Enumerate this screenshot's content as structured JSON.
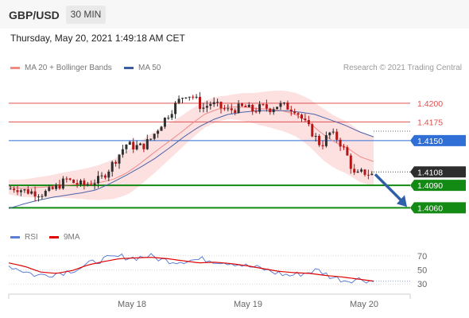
{
  "header": {
    "symbol": "GBP/USD",
    "timeframe": "30 MIN"
  },
  "timestamp": "Thursday, May 20, 2021 1:49:18 AM CET",
  "legend": {
    "ma20_label": "MA 20 + Bollinger Bands",
    "ma20_color": "#f28b82",
    "ma50_label": "MA 50",
    "ma50_color": "#3b5ba5",
    "copyright": "Research © 2021 Trading Central"
  },
  "rsi_legend": {
    "rsi_label": "RSI",
    "rsi_color": "#5b7fd6",
    "ma_label": "9MA",
    "ma_color": "#e00000"
  },
  "chart_data": {
    "type": "candlestick",
    "x_tick_labels": [
      "May 18",
      "May 19",
      "May 20"
    ],
    "price_range": [
      1.4038,
      1.4235
    ],
    "levels": [
      {
        "label": "1.4200",
        "value": 1.42,
        "kind": "resistance",
        "color": "#e05050"
      },
      {
        "label": "1.4175",
        "value": 1.4175,
        "kind": "resistance",
        "color": "#e05050"
      },
      {
        "label": "1.4150",
        "value": 1.415,
        "kind": "pivot",
        "color": "#2f6fd6"
      },
      {
        "label": "1.4108",
        "value": 1.4108,
        "kind": "last_price",
        "color": "#2d2d2d"
      },
      {
        "label": "1.4090",
        "value": 1.409,
        "kind": "target_1",
        "color": "#138a13"
      },
      {
        "label": "1.4060",
        "value": 1.406,
        "kind": "target_2",
        "color": "#138a13"
      }
    ],
    "forecast_arrow": {
      "from": 1.4108,
      "to": 1.406,
      "direction": "down",
      "color": "#2f5fa8"
    },
    "price_anchors": [
      1.4085,
      1.4087,
      1.4083,
      1.4081,
      1.4079,
      1.4082,
      1.4089,
      1.4098,
      1.4093,
      1.409,
      1.4094,
      1.4098,
      1.4112,
      1.4128,
      1.4145,
      1.4142,
      1.4142,
      1.4153,
      1.417,
      1.4185,
      1.42,
      1.4213,
      1.4209,
      1.4193,
      1.42,
      1.4195,
      1.419,
      1.4193,
      1.4195,
      1.419,
      1.4195,
      1.4193,
      1.4198,
      1.4195,
      1.4192,
      1.4175,
      1.416,
      1.4143,
      1.416,
      1.4152,
      1.4132,
      1.4102,
      1.4108,
      1.4104
    ],
    "ma20_anchors": [
      1.4088,
      1.4086,
      1.4087,
      1.4088,
      1.409,
      1.4091,
      1.4092,
      1.4094,
      1.4098,
      1.4106,
      1.4118,
      1.4132,
      1.4145,
      1.4158,
      1.4172,
      1.4185,
      1.4192,
      1.4195,
      1.4195,
      1.4193,
      1.4192,
      1.419,
      1.4185,
      1.4175,
      1.416,
      1.4148,
      1.414,
      1.4128,
      1.4122
    ],
    "ma50_anchors": [
      1.4059,
      1.4065,
      1.407,
      1.4074,
      1.4077,
      1.408,
      1.4084,
      1.4093,
      1.4103,
      1.4114,
      1.4126,
      1.414,
      1.4155,
      1.4168,
      1.4178,
      1.4185,
      1.4188,
      1.419,
      1.419,
      1.419,
      1.4188,
      1.4185,
      1.4178,
      1.4171,
      1.4162,
      1.4155
    ],
    "bb_width_anchors": [
      0.001,
      0.0013,
      0.0016,
      0.002,
      0.0025,
      0.003,
      0.0028,
      0.0022,
      0.0018,
      0.0016,
      0.002,
      0.0026,
      0.003,
      0.0035,
      0.0035,
      0.0033
    ],
    "rsi": {
      "y_tick_labels": [
        "70",
        "50",
        "30"
      ],
      "range": [
        20,
        80
      ],
      "rsi_anchors": [
        56,
        49,
        42,
        44,
        47,
        52,
        61,
        66,
        69,
        67,
        70,
        64,
        62,
        64,
        65,
        62,
        60,
        55,
        52,
        46,
        42,
        45,
        50,
        40,
        35,
        37,
        34
      ],
      "ma9_anchors": [
        60,
        55,
        47,
        45,
        49,
        57,
        62,
        66,
        67,
        68,
        66,
        63,
        60,
        61,
        59,
        56,
        52,
        48,
        46,
        45,
        42,
        40,
        37,
        34
      ]
    }
  }
}
